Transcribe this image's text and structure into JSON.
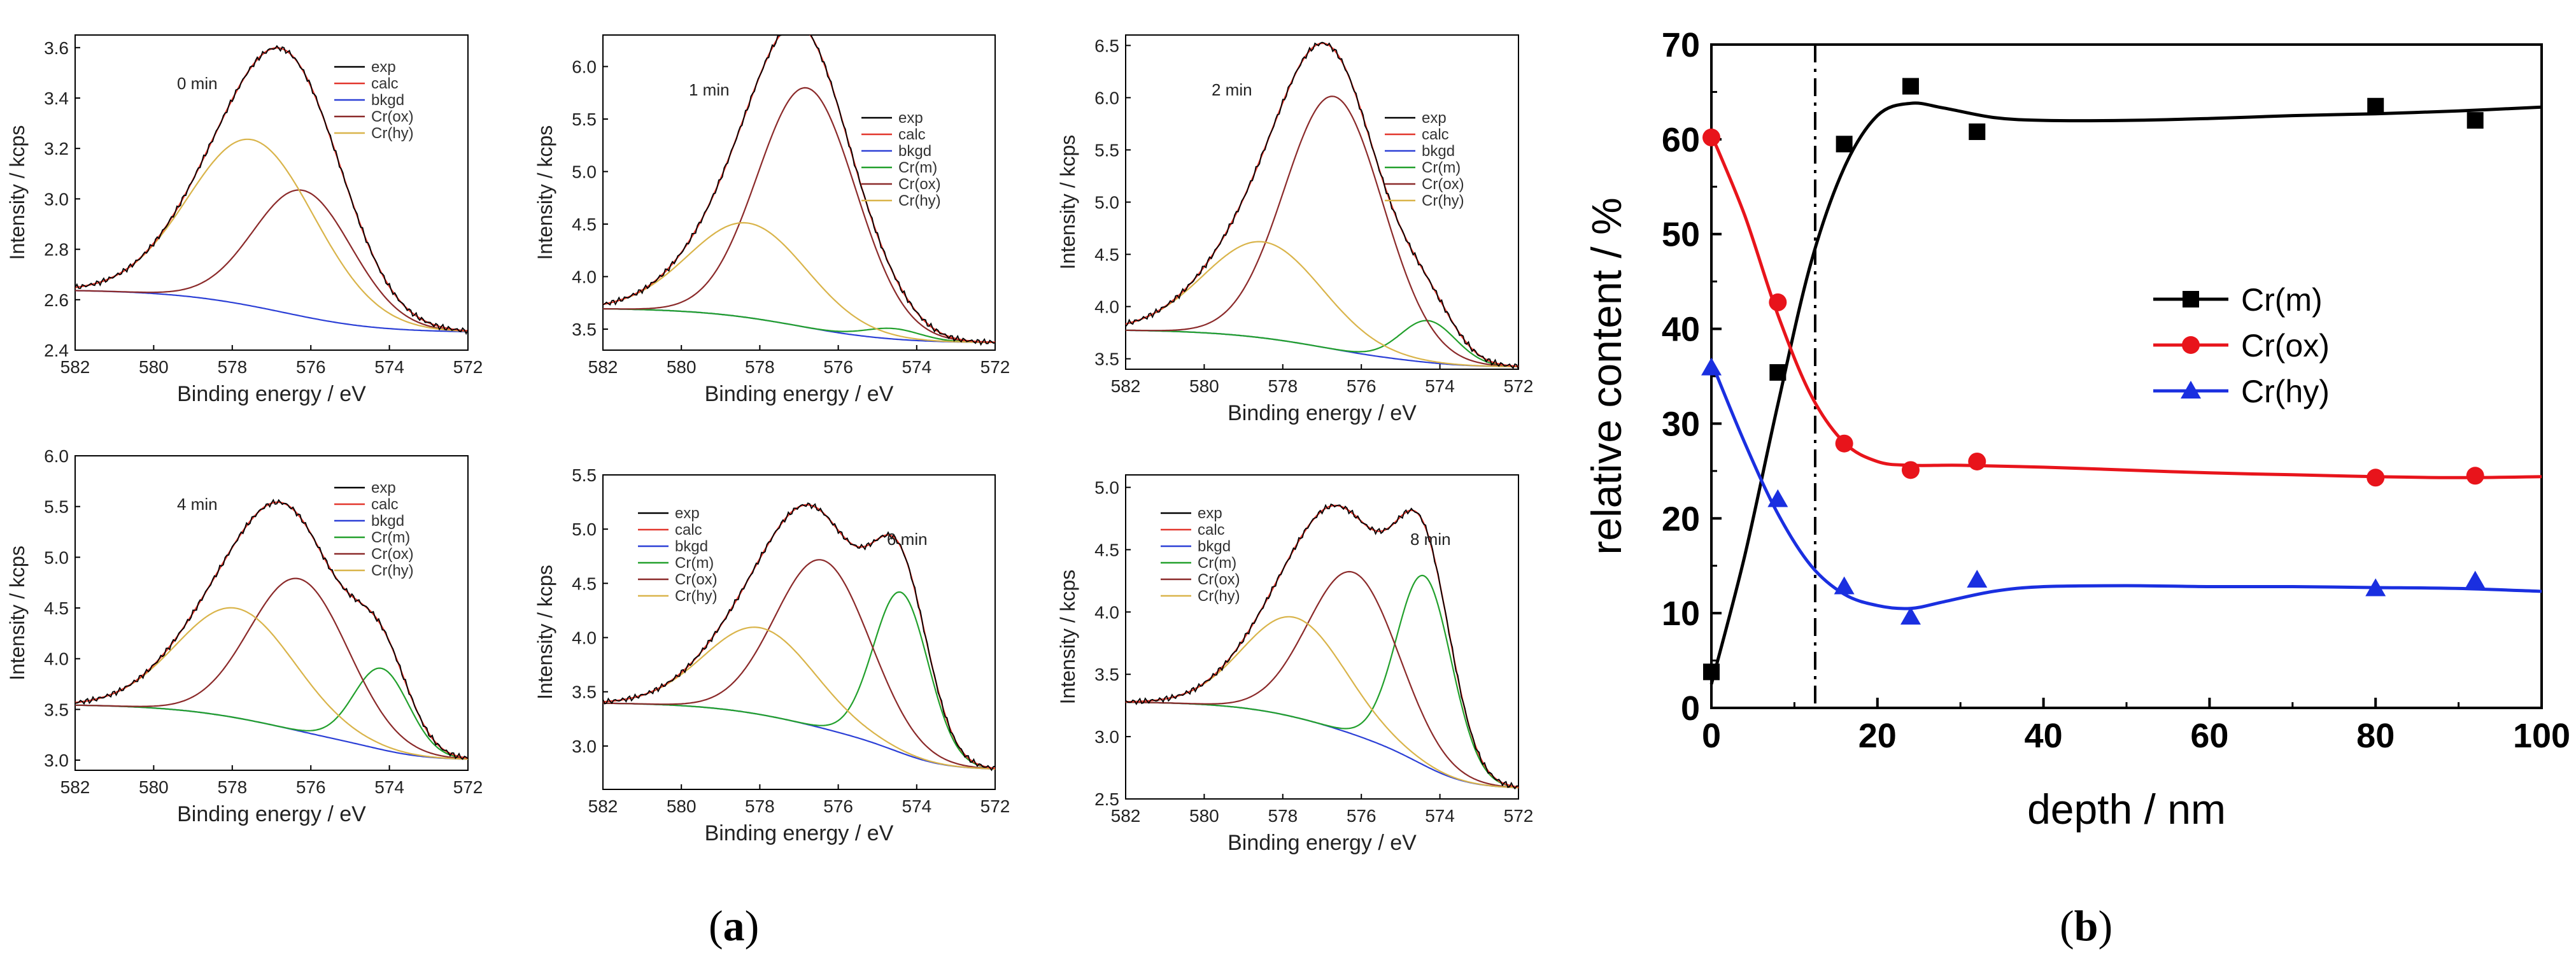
{
  "figure": {
    "caption_a": {
      "open": "(",
      "letter": "a",
      "close": ")"
    },
    "caption_b": {
      "open": "(",
      "letter": "b",
      "close": ")"
    }
  },
  "chart_data": [
    {
      "type": "line",
      "panel": "a",
      "annotation": "0 min",
      "xlabel": "Binding energy / eV",
      "ylabel": "Intensity / kcps",
      "xlim": [
        582,
        572
      ],
      "xticks": [
        582,
        580,
        578,
        576,
        574,
        572
      ],
      "ylim": [
        2.4,
        3.65
      ],
      "yticks": [
        2.4,
        2.6,
        2.8,
        3.0,
        3.2,
        3.4,
        3.6
      ],
      "legend": [
        "exp",
        "calc",
        "bkgd",
        "Cr(ox)",
        "Cr(hy)"
      ],
      "legend_position": "top-right",
      "background": {
        "left": 2.64,
        "right": 2.47
      },
      "peaks": [
        {
          "name": "Cr(ox)",
          "center": 576.2,
          "height": 0.5,
          "width": 1.25
        },
        {
          "name": "Cr(hy)",
          "center": 577.5,
          "height": 0.66,
          "width": 1.6
        }
      ],
      "colors": {
        "exp": "#000000",
        "calc": "#e2362c",
        "bkgd": "#2b3fd6",
        "Cr(m)": "#22a02c",
        "Cr(ox)": "#8b2a2a",
        "Cr(hy)": "#d9b44a"
      }
    },
    {
      "type": "line",
      "panel": "a",
      "annotation": "1 min",
      "xlabel": "Binding energy / eV",
      "ylabel": "Intensity / kcps",
      "xlim": [
        582,
        572
      ],
      "xticks": [
        582,
        580,
        578,
        576,
        574,
        572
      ],
      "ylim": [
        3.3,
        6.3
      ],
      "yticks": [
        3.5,
        4.0,
        4.5,
        5.0,
        5.5,
        6.0
      ],
      "legend": [
        "exp",
        "calc",
        "bkgd",
        "Cr(m)",
        "Cr(ox)",
        "Cr(hy)"
      ],
      "legend_position": "right",
      "background": {
        "left": 3.7,
        "right": 3.37
      },
      "peaks": [
        {
          "name": "Cr(m)",
          "center": 574.6,
          "height": 0.1,
          "width": 0.7
        },
        {
          "name": "Cr(ox)",
          "center": 576.8,
          "height": 2.28,
          "width": 1.25
        },
        {
          "name": "Cr(hy)",
          "center": 578.3,
          "height": 0.9,
          "width": 1.5
        }
      ],
      "colors": {
        "exp": "#000000",
        "calc": "#e2362c",
        "bkgd": "#2b3fd6",
        "Cr(m)": "#22a02c",
        "Cr(ox)": "#8b2a2a",
        "Cr(hy)": "#d9b44a"
      }
    },
    {
      "type": "line",
      "panel": "a",
      "annotation": "2 min",
      "xlabel": "Binding energy / eV",
      "ylabel": "Intensity / kcps",
      "xlim": [
        582,
        572
      ],
      "xticks": [
        582,
        580,
        578,
        576,
        574,
        572
      ],
      "ylim": [
        3.4,
        6.6
      ],
      "yticks": [
        3.5,
        4.0,
        4.5,
        5.0,
        5.5,
        6.0,
        6.5
      ],
      "legend": [
        "exp",
        "calc",
        "bkgd",
        "Cr(m)",
        "Cr(ox)",
        "Cr(hy)"
      ],
      "legend_position": "right",
      "background": {
        "left": 3.78,
        "right": 3.42
      },
      "peaks": [
        {
          "name": "Cr(m)",
          "center": 574.3,
          "height": 0.4,
          "width": 0.7
        },
        {
          "name": "Cr(ox)",
          "center": 576.7,
          "height": 2.42,
          "width": 1.25
        },
        {
          "name": "Cr(hy)",
          "center": 578.5,
          "height": 0.92,
          "width": 1.5
        }
      ],
      "colors": {
        "exp": "#000000",
        "calc": "#e2362c",
        "bkgd": "#2b3fd6",
        "Cr(m)": "#22a02c",
        "Cr(ox)": "#8b2a2a",
        "Cr(hy)": "#d9b44a"
      }
    },
    {
      "type": "line",
      "panel": "a",
      "annotation": "4 min",
      "xlabel": "Binding energy / eV",
      "ylabel": "Intensity / kcps",
      "xlim": [
        582,
        572
      ],
      "xticks": [
        582,
        580,
        578,
        576,
        574,
        572
      ],
      "ylim": [
        2.9,
        6.0
      ],
      "yticks": [
        3.0,
        3.5,
        4.0,
        4.5,
        5.0,
        5.5,
        6.0
      ],
      "legend": [
        "exp",
        "calc",
        "bkgd",
        "Cr(m)",
        "Cr(ox)",
        "Cr(hy)"
      ],
      "legend_position": "top-right",
      "background": {
        "left": 3.55,
        "right": 3.0
      },
      "peaks": [
        {
          "name": "Cr(m)",
          "center": 574.2,
          "height": 0.8,
          "width": 0.7
        },
        {
          "name": "Cr(ox)",
          "center": 576.3,
          "height": 1.5,
          "width": 1.25
        },
        {
          "name": "Cr(hy)",
          "center": 577.9,
          "height": 1.08,
          "width": 1.5
        }
      ],
      "colors": {
        "exp": "#000000",
        "calc": "#e2362c",
        "bkgd": "#2b3fd6",
        "Cr(m)": "#22a02c",
        "Cr(ox)": "#8b2a2a",
        "Cr(hy)": "#d9b44a"
      }
    },
    {
      "type": "line",
      "panel": "a",
      "annotation": "6 min",
      "xlabel": "Binding energy / eV",
      "ylabel": "Intensity / kcps",
      "xlim": [
        582,
        572
      ],
      "xticks": [
        582,
        580,
        578,
        576,
        574,
        572
      ],
      "ylim": [
        2.6,
        5.5
      ],
      "yticks": [
        3.0,
        3.5,
        4.0,
        4.5,
        5.0,
        5.5
      ],
      "legend": [
        "exp",
        "calc",
        "bkgd",
        "Cr(m)",
        "Cr(ox)",
        "Cr(hy)"
      ],
      "legend_position": "top-left",
      "background": {
        "left": 3.4,
        "right": 2.78
      },
      "peaks": [
        {
          "name": "Cr(m)",
          "center": 574.4,
          "height": 1.48,
          "width": 0.7
        },
        {
          "name": "Cr(ox)",
          "center": 576.4,
          "height": 1.55,
          "width": 1.2
        },
        {
          "name": "Cr(hy)",
          "center": 578.0,
          "height": 0.8,
          "width": 1.4
        }
      ],
      "colors": {
        "exp": "#000000",
        "calc": "#e2362c",
        "bkgd": "#2b3fd6",
        "Cr(m)": "#22a02c",
        "Cr(ox)": "#8b2a2a",
        "Cr(hy)": "#d9b44a"
      }
    },
    {
      "type": "line",
      "panel": "a",
      "annotation": "8 min",
      "xlabel": "Binding energy / eV",
      "ylabel": "Intensity / kcps",
      "xlim": [
        582,
        572
      ],
      "xticks": [
        582,
        580,
        578,
        576,
        574,
        572
      ],
      "ylim": [
        2.5,
        5.1
      ],
      "yticks": [
        2.5,
        3.0,
        3.5,
        4.0,
        4.5,
        5.0
      ],
      "legend": [
        "exp",
        "calc",
        "bkgd",
        "Cr(m)",
        "Cr(ox)",
        "Cr(hy)"
      ],
      "legend_position": "top-left",
      "background": {
        "left": 3.28,
        "right": 2.58
      },
      "peaks": [
        {
          "name": "Cr(m)",
          "center": 574.4,
          "height": 1.52,
          "width": 0.7
        },
        {
          "name": "Cr(ox)",
          "center": 576.2,
          "height": 1.3,
          "width": 1.15
        },
        {
          "name": "Cr(hy)",
          "center": 577.7,
          "height": 0.8,
          "width": 1.3
        }
      ],
      "colors": {
        "exp": "#000000",
        "calc": "#e2362c",
        "bkgd": "#2b3fd6",
        "Cr(m)": "#22a02c",
        "Cr(ox)": "#8b2a2a",
        "Cr(hy)": "#d9b44a"
      }
    },
    {
      "type": "scatter",
      "panel": "b",
      "xlabel": "depth / nm",
      "ylabel": "relative content / %",
      "xlim": [
        0,
        100
      ],
      "ylim": [
        0,
        70
      ],
      "xticks": [
        0,
        20,
        40,
        60,
        80,
        100
      ],
      "yticks": [
        0,
        10,
        20,
        30,
        40,
        50,
        60,
        70
      ],
      "vline_x": 12.5,
      "legend_position": "center-right",
      "series": [
        {
          "name": "Cr(m)",
          "color": "#000000",
          "marker": "square",
          "x": [
            0,
            8,
            16,
            24,
            32,
            80,
            92
          ],
          "y": [
            3.8,
            35.4,
            59.5,
            65.6,
            60.8,
            63.5,
            62.0
          ],
          "fit_x": [
            0,
            4,
            8,
            12,
            16,
            20,
            24,
            28,
            34,
            40,
            50,
            60,
            70,
            80,
            90,
            100
          ],
          "fit_y": [
            2.5,
            16,
            32,
            47,
            57,
            62.5,
            63.8,
            63.3,
            62.3,
            62,
            62,
            62.2,
            62.5,
            62.7,
            63,
            63.4
          ]
        },
        {
          "name": "Cr(ox)",
          "color": "#e8141b",
          "marker": "circle",
          "x": [
            0,
            8,
            16,
            24,
            32,
            80,
            92
          ],
          "y": [
            60.2,
            42.8,
            27.9,
            25.1,
            26.0,
            24.3,
            24.5
          ],
          "fit_x": [
            0,
            4,
            8,
            12,
            16,
            20,
            24,
            30,
            40,
            50,
            60,
            70,
            80,
            90,
            100
          ],
          "fit_y": [
            60.5,
            52,
            41.5,
            33,
            28,
            26,
            25.6,
            25.6,
            25.4,
            25.1,
            24.8,
            24.6,
            24.4,
            24.3,
            24.4
          ]
        },
        {
          "name": "Cr(hy)",
          "color": "#1a2fe0",
          "marker": "triangle",
          "x": [
            0,
            8,
            16,
            24,
            32,
            80,
            92
          ],
          "y": [
            35.9,
            22.0,
            12.8,
            9.6,
            13.5,
            12.6,
            13.4
          ],
          "fit_x": [
            0,
            4,
            8,
            12,
            16,
            20,
            24,
            28,
            34,
            40,
            50,
            60,
            70,
            80,
            90,
            100
          ],
          "fit_y": [
            36.5,
            28,
            20.5,
            15,
            12,
            10.8,
            10.5,
            11.2,
            12.3,
            12.8,
            12.9,
            12.8,
            12.8,
            12.7,
            12.6,
            12.3
          ]
        }
      ]
    }
  ]
}
